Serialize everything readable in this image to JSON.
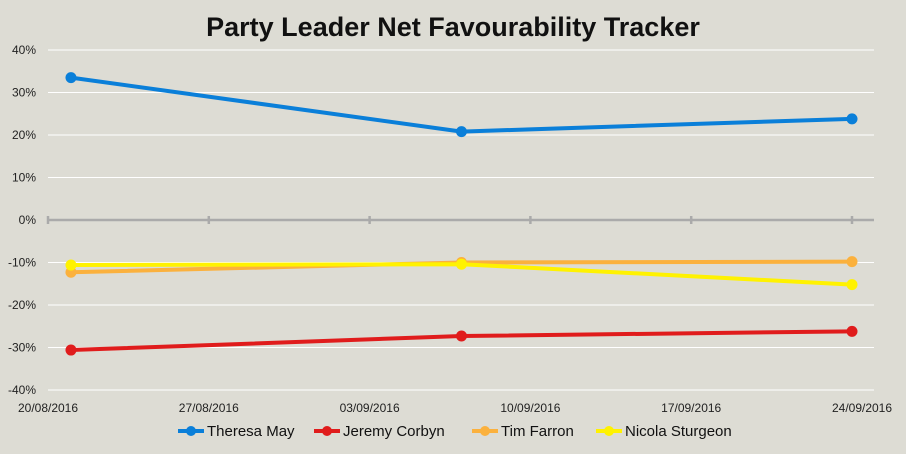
{
  "chart_data": {
    "type": "line",
    "title": "Party Leader Net Favourability Tracker",
    "xlabel": "",
    "ylabel": "",
    "x_axis": {
      "type": "date",
      "min": "2016-08-20",
      "max": "2016-09-24",
      "tick_labels": [
        "20/08/2016",
        "27/08/2016",
        "03/09/2016",
        "10/09/2016",
        "17/09/2016",
        "24/09/2016"
      ],
      "tick_dates": [
        "2016-08-20",
        "2016-08-27",
        "2016-09-03",
        "2016-09-10",
        "2016-09-17",
        "2016-09-24"
      ]
    },
    "y_axis": {
      "min": -40,
      "max": 40,
      "step": 10,
      "tick_labels": [
        "40%",
        "30%",
        "20%",
        "10%",
        "0%",
        "-10%",
        "-20%",
        "-30%",
        "-40%"
      ],
      "tick_values": [
        40,
        30,
        20,
        10,
        0,
        -10,
        -20,
        -30,
        -40
      ]
    },
    "x": [
      "2016-08-21",
      "2016-09-07",
      "2016-09-24"
    ],
    "series": [
      {
        "name": "Theresa May",
        "color": "#0a7fd9",
        "values": [
          33.5,
          20.8,
          23.8
        ]
      },
      {
        "name": "Jeremy Corbyn",
        "color": "#e01c1c",
        "values": [
          -30.6,
          -27.3,
          -26.2
        ]
      },
      {
        "name": "Tim Farron",
        "color": "#fbb13d",
        "values": [
          -12.3,
          -10.0,
          -9.8
        ]
      },
      {
        "name": "Nicola Sturgeon",
        "color": "#fff200",
        "values": [
          -10.6,
          -10.4,
          -15.2
        ]
      }
    ],
    "grid": "horizontal",
    "legend_position": "bottom"
  },
  "colors": {
    "background": "#dddcd4",
    "gridline": "#ffffff",
    "zero_axis": "#aaaaaa"
  }
}
